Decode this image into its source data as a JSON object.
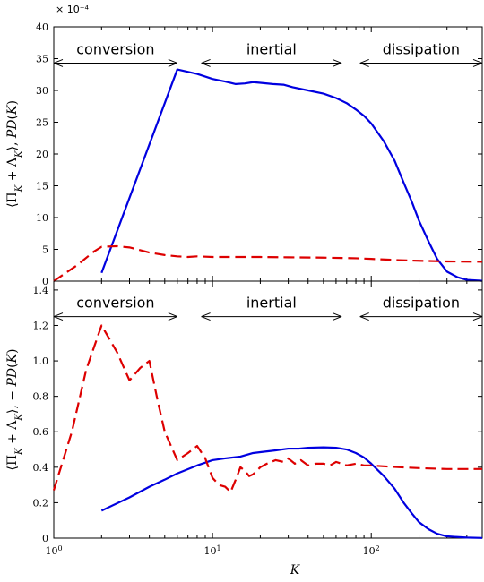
{
  "chart_data": [
    {
      "type": "line",
      "x_scale": "log",
      "xlim": [
        1,
        500
      ],
      "ylim": [
        0,
        40
      ],
      "y_multiplier_label": "× 10⁻⁴",
      "ylabel": "⟨Π_K + Λ_K⟩,  PD(K)",
      "xlabel": "",
      "grid": false,
      "yticks": [
        0,
        5,
        10,
        15,
        20,
        25,
        30,
        35,
        40
      ],
      "ytick_labels": [
        "0",
        "5",
        "10",
        "15",
        "20",
        "25",
        "30",
        "35",
        "40"
      ],
      "regions": [
        {
          "label": "conversion",
          "x_from": 1,
          "x_to": 6
        },
        {
          "label": "inertial",
          "x_from": 8.5,
          "x_to": 65
        },
        {
          "label": "dissipation",
          "x_from": 85,
          "x_to": 500
        }
      ],
      "region_arrow_y": 34.3,
      "series": [
        {
          "color": "#0000e0",
          "dash": "solid",
          "points": [
            [
              2,
              1.3
            ],
            [
              6,
              33.3
            ],
            [
              8,
              32.6
            ],
            [
              10,
              31.8
            ],
            [
              12,
              31.4
            ],
            [
              14,
              31.0
            ],
            [
              16,
              31.1
            ],
            [
              18,
              31.3
            ],
            [
              20,
              31.2
            ],
            [
              24,
              31.0
            ],
            [
              28,
              30.9
            ],
            [
              32,
              30.5
            ],
            [
              40,
              30.0
            ],
            [
              50,
              29.5
            ],
            [
              60,
              28.8
            ],
            [
              70,
              28.0
            ],
            [
              80,
              27.0
            ],
            [
              90,
              26.0
            ],
            [
              100,
              24.8
            ],
            [
              120,
              22.0
            ],
            [
              140,
              19.0
            ],
            [
              160,
              15.5
            ],
            [
              180,
              12.5
            ],
            [
              200,
              9.5
            ],
            [
              230,
              6.2
            ],
            [
              260,
              3.5
            ],
            [
              300,
              1.5
            ],
            [
              350,
              0.6
            ],
            [
              400,
              0.2
            ],
            [
              500,
              0.05
            ]
          ]
        },
        {
          "color": "#dd0000",
          "dash": "dashed",
          "points": [
            [
              1,
              0
            ],
            [
              1.4,
              2.5
            ],
            [
              1.8,
              4.7
            ],
            [
              2,
              5.4
            ],
            [
              2.5,
              5.5
            ],
            [
              3,
              5.3
            ],
            [
              4,
              4.5
            ],
            [
              5,
              4.1
            ],
            [
              6,
              3.9
            ],
            [
              7,
              3.8
            ],
            [
              8,
              3.9
            ],
            [
              10,
              3.8
            ],
            [
              15,
              3.8
            ],
            [
              20,
              3.8
            ],
            [
              30,
              3.75
            ],
            [
              50,
              3.7
            ],
            [
              80,
              3.6
            ],
            [
              100,
              3.5
            ],
            [
              150,
              3.3
            ],
            [
              200,
              3.2
            ],
            [
              300,
              3.1
            ],
            [
              500,
              3.05
            ]
          ]
        }
      ]
    },
    {
      "type": "line",
      "x_scale": "log",
      "xlim": [
        1,
        500
      ],
      "ylim": [
        0,
        1.45
      ],
      "ylabel": "⟨Π_K + Λ_K⟩,  − PD(K)",
      "xlabel": "K",
      "grid": false,
      "xticks": [
        1,
        10,
        100
      ],
      "xtick_labels": [
        {
          "base": "10",
          "exp": "0"
        },
        {
          "base": "10",
          "exp": "1"
        },
        {
          "base": "10",
          "exp": "2"
        }
      ],
      "yticks": [
        0,
        0.2,
        0.4,
        0.6,
        0.8,
        1.0,
        1.2,
        1.4
      ],
      "ytick_labels": [
        "0",
        "0.2",
        "0.4",
        "0.6",
        "0.8",
        "1.0",
        "1.2",
        "1.4"
      ],
      "regions": [
        {
          "label": "conversion",
          "x_from": 1,
          "x_to": 6
        },
        {
          "label": "inertial",
          "x_from": 8.5,
          "x_to": 65
        },
        {
          "label": "dissipation",
          "x_from": 85,
          "x_to": 500
        }
      ],
      "region_arrow_y": 1.25,
      "series": [
        {
          "color": "#0000e0",
          "dash": "solid",
          "points": [
            [
              2,
              0.155
            ],
            [
              3,
              0.23
            ],
            [
              4,
              0.29
            ],
            [
              5,
              0.33
            ],
            [
              6,
              0.365
            ],
            [
              8,
              0.41
            ],
            [
              10,
              0.44
            ],
            [
              12,
              0.45
            ],
            [
              15,
              0.46
            ],
            [
              18,
              0.48
            ],
            [
              20,
              0.485
            ],
            [
              25,
              0.495
            ],
            [
              30,
              0.505
            ],
            [
              35,
              0.505
            ],
            [
              40,
              0.51
            ],
            [
              50,
              0.512
            ],
            [
              60,
              0.51
            ],
            [
              70,
              0.5
            ],
            [
              80,
              0.48
            ],
            [
              90,
              0.455
            ],
            [
              100,
              0.42
            ],
            [
              120,
              0.35
            ],
            [
              140,
              0.28
            ],
            [
              160,
              0.2
            ],
            [
              180,
              0.14
            ],
            [
              200,
              0.09
            ],
            [
              230,
              0.05
            ],
            [
              260,
              0.025
            ],
            [
              300,
              0.01
            ],
            [
              400,
              0.003
            ],
            [
              500,
              0.001
            ]
          ]
        },
        {
          "color": "#dd0000",
          "dash": "dashed",
          "points": [
            [
              1,
              0.27
            ],
            [
              1.3,
              0.6
            ],
            [
              1.6,
              0.95
            ],
            [
              2,
              1.2
            ],
            [
              2.5,
              1.05
            ],
            [
              3,
              0.89
            ],
            [
              3.5,
              0.96
            ],
            [
              4,
              1.0
            ],
            [
              4.5,
              0.78
            ],
            [
              5,
              0.6
            ],
            [
              6,
              0.44
            ],
            [
              7,
              0.48
            ],
            [
              8,
              0.52
            ],
            [
              9,
              0.45
            ],
            [
              10,
              0.34
            ],
            [
              11,
              0.3
            ],
            [
              12,
              0.29
            ],
            [
              13,
              0.26
            ],
            [
              14,
              0.33
            ],
            [
              15,
              0.4
            ],
            [
              16,
              0.38
            ],
            [
              17,
              0.35
            ],
            [
              18,
              0.36
            ],
            [
              20,
              0.4
            ],
            [
              22,
              0.42
            ],
            [
              25,
              0.44
            ],
            [
              28,
              0.43
            ],
            [
              30,
              0.45
            ],
            [
              33,
              0.42
            ],
            [
              36,
              0.44
            ],
            [
              40,
              0.41
            ],
            [
              45,
              0.42
            ],
            [
              50,
              0.42
            ],
            [
              55,
              0.41
            ],
            [
              60,
              0.43
            ],
            [
              65,
              0.42
            ],
            [
              70,
              0.41
            ],
            [
              80,
              0.42
            ],
            [
              90,
              0.41
            ],
            [
              100,
              0.41
            ],
            [
              120,
              0.405
            ],
            [
              150,
              0.4
            ],
            [
              200,
              0.395
            ],
            [
              300,
              0.39
            ],
            [
              500,
              0.39
            ]
          ]
        }
      ]
    }
  ]
}
